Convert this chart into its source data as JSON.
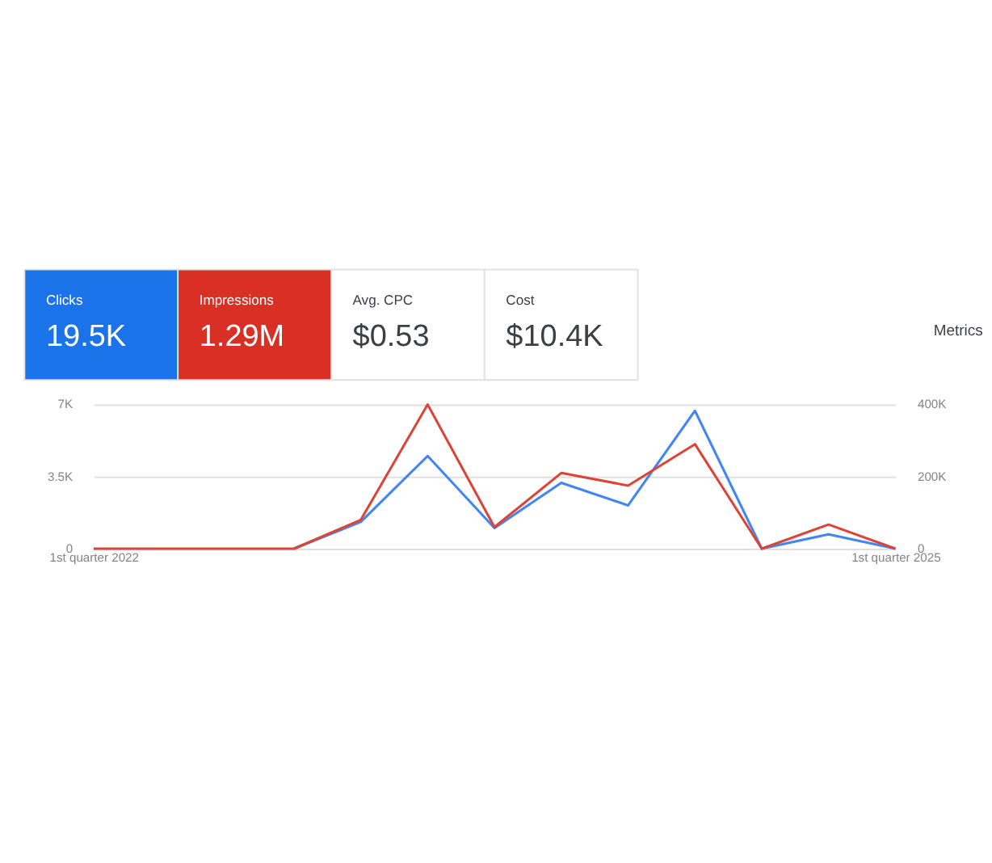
{
  "chart_data": [
    {
      "type": "other",
      "categories": [
        "Clicks",
        "Impressions",
        "Avg. CPC",
        "Cost"
      ],
      "value_labels": [
        "19.5K",
        "1.29M",
        "$0.53",
        "$10.4K"
      ],
      "colors": [
        "#1a73e8",
        "#d93025",
        "#ffffff",
        "#ffffff"
      ],
      "annotations": [
        "Metrics"
      ]
    },
    {
      "type": "line",
      "categories": [
        "1st quarter 2022",
        null,
        null,
        null,
        null,
        null,
        null,
        null,
        null,
        null,
        null,
        null,
        "1st quarter 2025"
      ],
      "series": [
        {
          "color": "#4285f4",
          "values": [
            null,
            null,
            null,
            0,
            1300,
            4500,
            1000,
            3200,
            2100,
            6700,
            0,
            700,
            0
          ]
        },
        {
          "color": "#db4437",
          "axis": "y2",
          "values": [
            0,
            0,
            0,
            0,
            80000,
            400000,
            60000,
            210000,
            175000,
            290000,
            0,
            67000,
            0
          ]
        }
      ],
      "ylim": [
        0,
        7000
      ],
      "yticks": [
        0,
        {
          "value": 3500,
          "label": "3.5K"
        },
        {
          "value": 7000,
          "label": "7K"
        }
      ],
      "y2lim": [
        0,
        400000
      ],
      "y2ticks": [
        0,
        {
          "value": 200000,
          "label": "200K"
        },
        {
          "value": 400000,
          "label": "400K"
        }
      ],
      "grid": "y",
      "marker": "none",
      "line_style": "solid"
    }
  ]
}
